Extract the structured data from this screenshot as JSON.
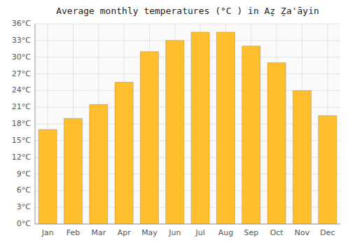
{
  "chart_data": {
    "type": "bar",
    "title": "Average monthly temperatures (°C ) in Az̧ Z̧a'āyin",
    "categories": [
      "Jan",
      "Feb",
      "Mar",
      "Apr",
      "May",
      "Jun",
      "Jul",
      "Aug",
      "Sep",
      "Oct",
      "Nov",
      "Dec"
    ],
    "values": [
      17,
      19,
      21.5,
      25.5,
      31,
      33,
      34.5,
      34.5,
      32,
      29,
      24,
      19.5
    ],
    "color": "#FFBE2D",
    "ylim": [
      0,
      36
    ],
    "yticks": [
      {
        "value": 0,
        "label": "0°C"
      },
      {
        "value": 3,
        "label": "3°C"
      },
      {
        "value": 6,
        "label": "6°C"
      },
      {
        "value": 9,
        "label": "9°C"
      },
      {
        "value": 12,
        "label": "12°C"
      },
      {
        "value": 15,
        "label": "15°C"
      },
      {
        "value": 18,
        "label": "18°C"
      },
      {
        "value": 21,
        "label": "21°C"
      },
      {
        "value": 24,
        "label": "24°C"
      },
      {
        "value": 27,
        "label": "27°C"
      },
      {
        "value": 30,
        "label": "30°C"
      },
      {
        "value": 33,
        "label": "33°C"
      },
      {
        "value": 36,
        "label": "36°C"
      }
    ],
    "grid": true
  }
}
